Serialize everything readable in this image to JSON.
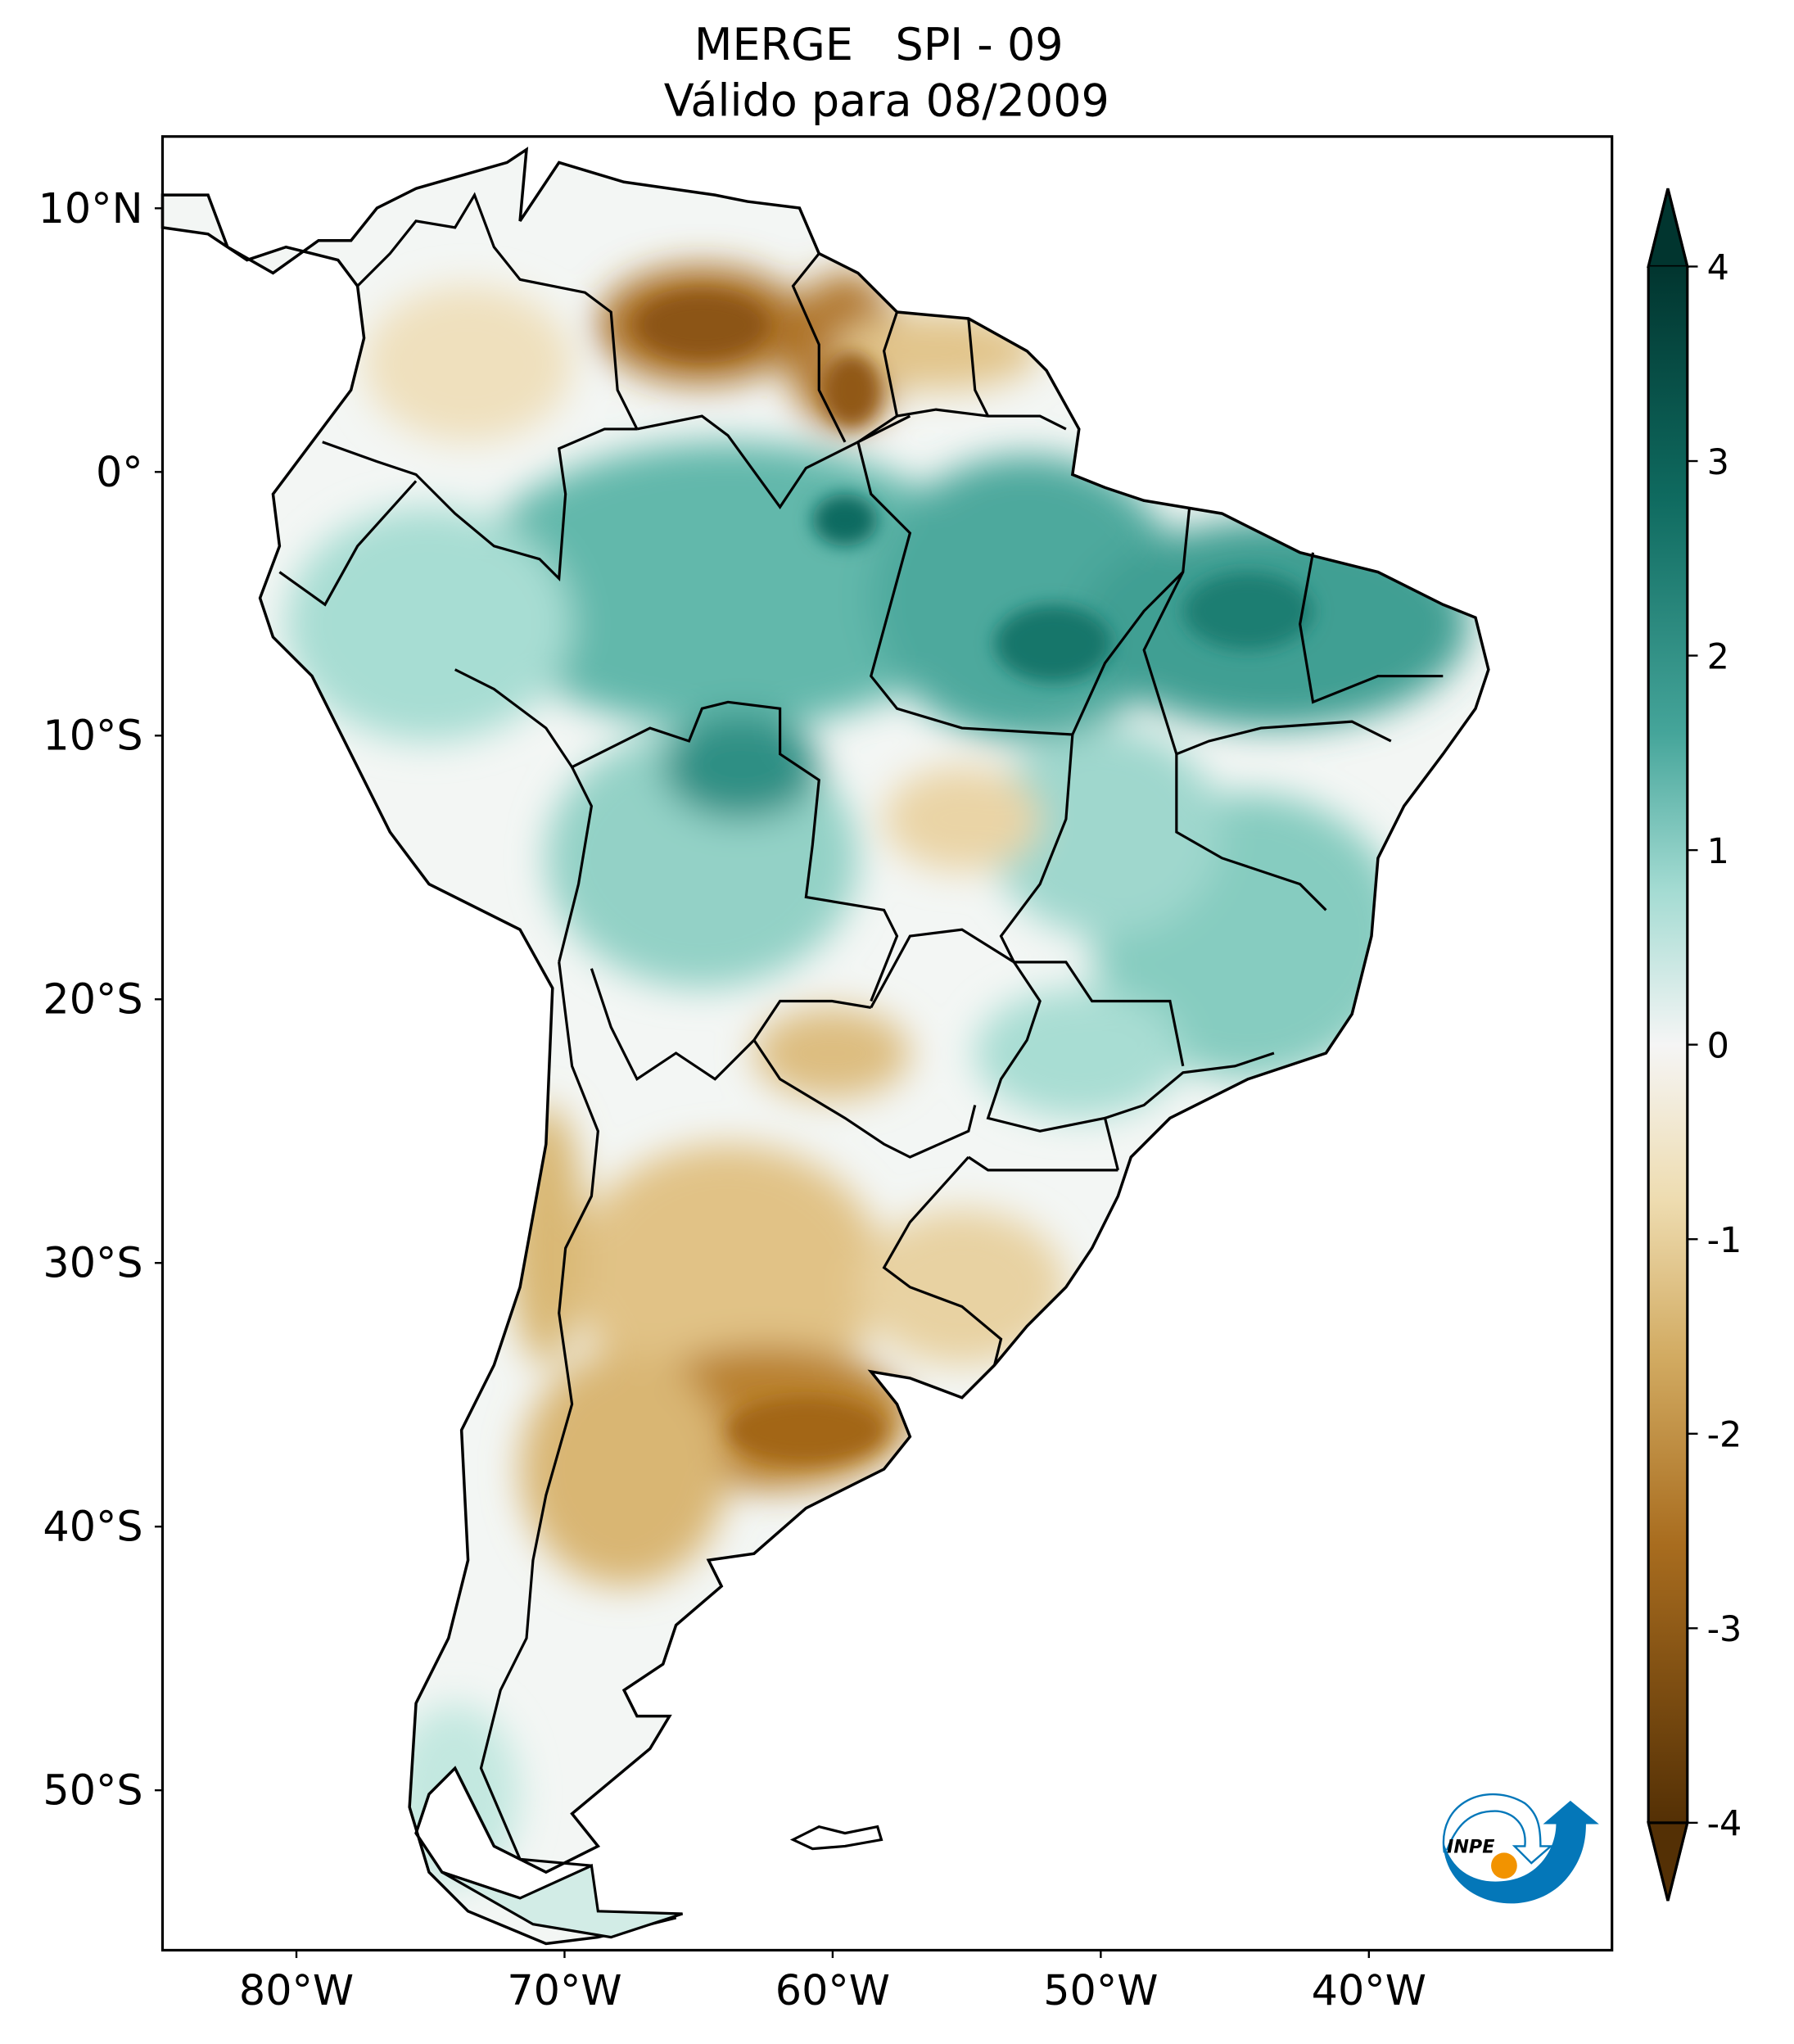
{
  "title": {
    "line1": "MERGE   SPI - 09",
    "line2": "Válido para 08/2009"
  },
  "map": {
    "projection": "PlateCarree",
    "lon_range": [
      -85,
      -31
    ],
    "lat_range": [
      -56,
      13
    ],
    "lat_ticks": [
      {
        "value": 10,
        "label": "10°N"
      },
      {
        "value": 0,
        "label": "0°"
      },
      {
        "value": -10,
        "label": "10°S"
      },
      {
        "value": -20,
        "label": "20°S"
      },
      {
        "value": -30,
        "label": "30°S"
      },
      {
        "value": -40,
        "label": "40°S"
      },
      {
        "value": -50,
        "label": "50°S"
      }
    ],
    "lon_ticks": [
      {
        "value": -80,
        "label": "80°W"
      },
      {
        "value": -70,
        "label": "70°W"
      },
      {
        "value": -60,
        "label": "60°W"
      },
      {
        "value": -50,
        "label": "50°W"
      },
      {
        "value": -40,
        "label": "40°W"
      }
    ]
  },
  "colorbar": {
    "colormap": "BrBG",
    "range": [
      -4,
      4
    ],
    "extend": "both",
    "ticks": [
      {
        "value": 4,
        "label": "4"
      },
      {
        "value": 3,
        "label": "3"
      },
      {
        "value": 2,
        "label": "2"
      },
      {
        "value": 1,
        "label": "1"
      },
      {
        "value": 0,
        "label": "0"
      },
      {
        "value": -1,
        "label": "-1"
      },
      {
        "value": -2,
        "label": "-2"
      },
      {
        "value": -3,
        "label": "-3"
      },
      {
        "value": -4,
        "label": "-4"
      }
    ],
    "colors": {
      "wet_max": "#01352f",
      "wet": "#3a9e93",
      "neutral": "#f5f5f5",
      "dry": "#d8b26a",
      "dry_max": "#543005"
    }
  },
  "logo": {
    "text": "INPE",
    "colors": {
      "blue": "#0477b9",
      "orange": "#f29300"
    }
  }
}
